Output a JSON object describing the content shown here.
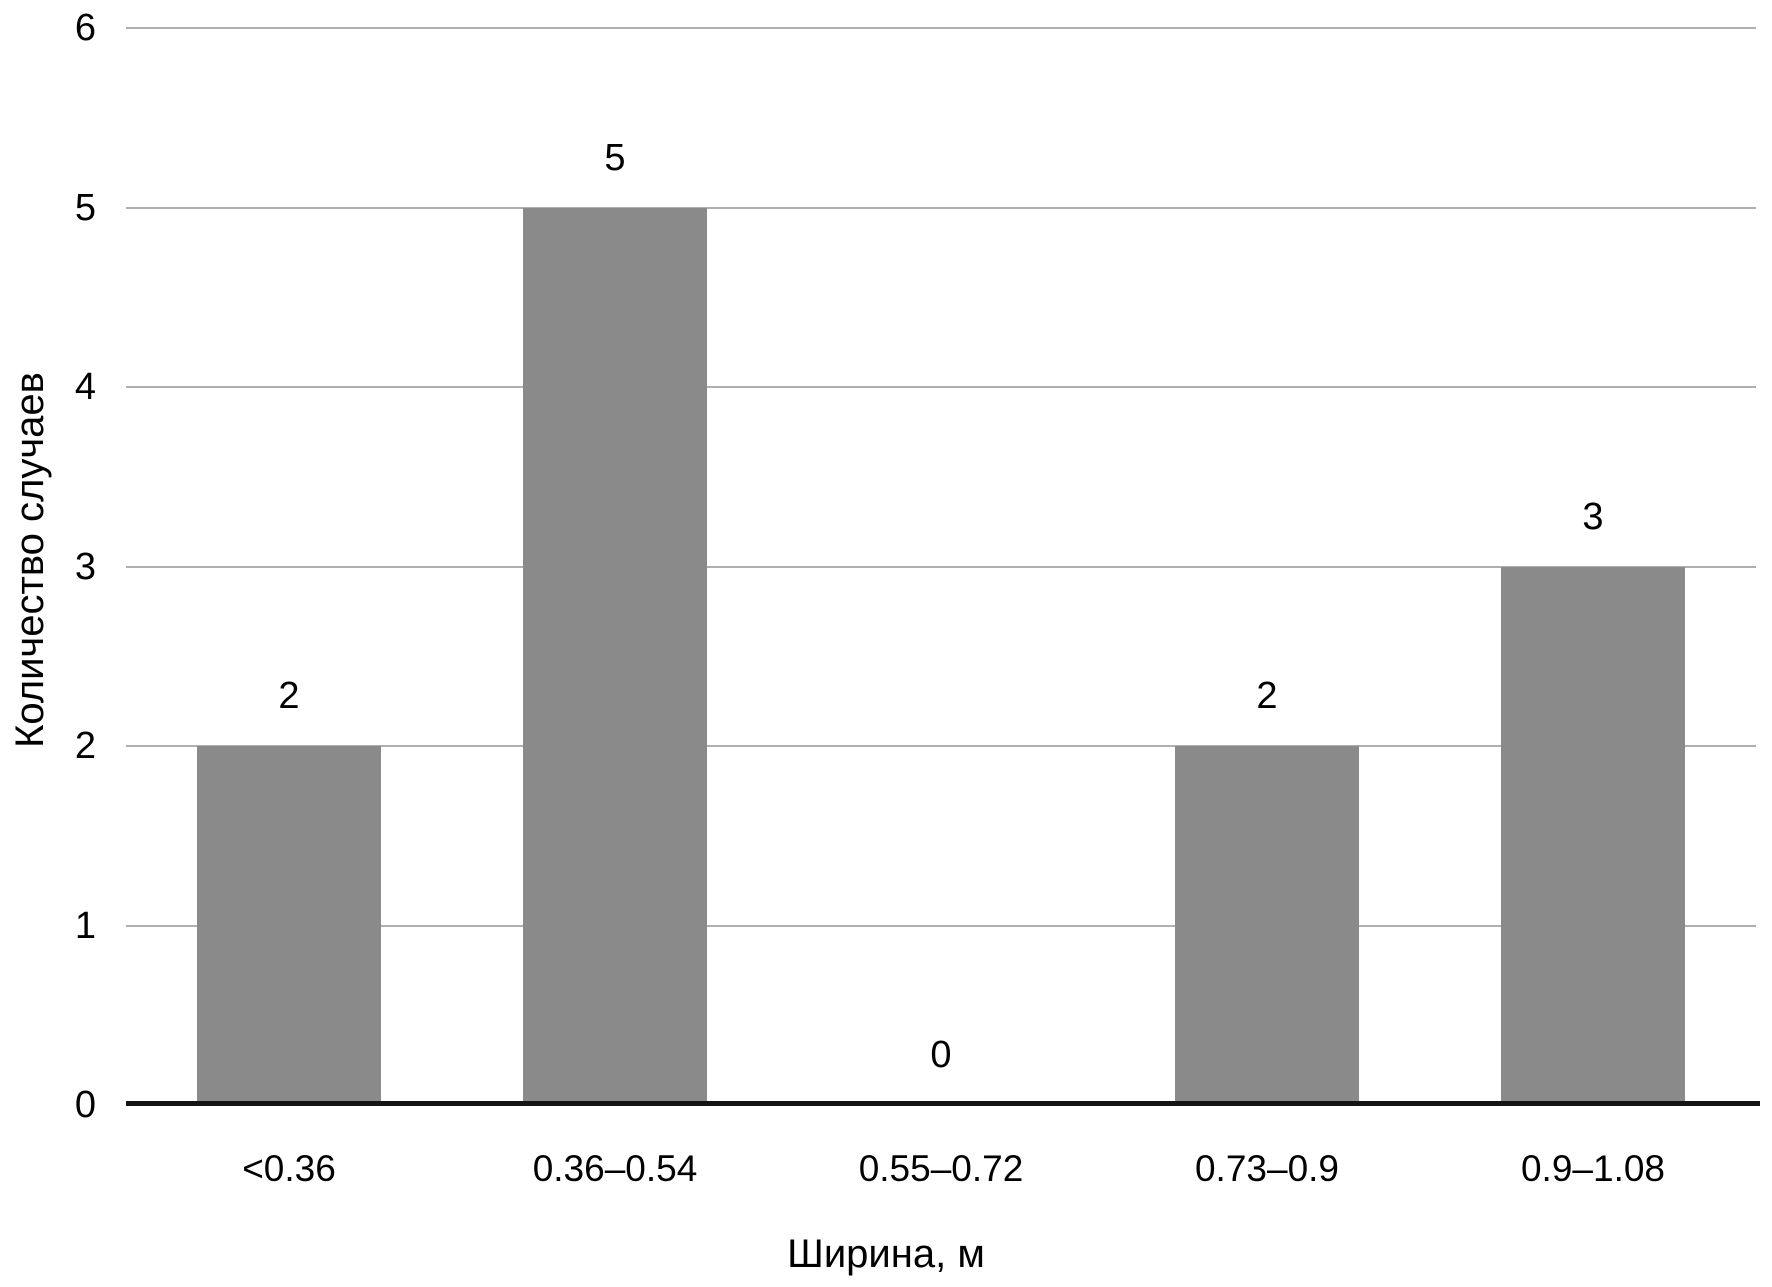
{
  "chart_data": {
    "type": "bar",
    "title": "",
    "categories": [
      "<0.36",
      "0.36–0.54",
      "0.55–0.72",
      "0.73–0.9",
      "0.9–1.08"
    ],
    "values": [
      2,
      5,
      0,
      2,
      3
    ],
    "data_labels": [
      "2",
      "5",
      "0",
      "2",
      "3"
    ],
    "xlabel": "Ширина, м",
    "ylabel": "Количество случаев",
    "ylim": [
      0,
      6
    ],
    "yticks": [
      0,
      1,
      2,
      3,
      4,
      5,
      6
    ],
    "grid": "horizontal",
    "legend_position": "none",
    "data_labels_shown": true,
    "colors": {
      "bar": "#8A8A8A",
      "gridline": "#AFAFAF",
      "axis": "#141414",
      "text": "#000000",
      "background": "#FFFFFF"
    }
  }
}
